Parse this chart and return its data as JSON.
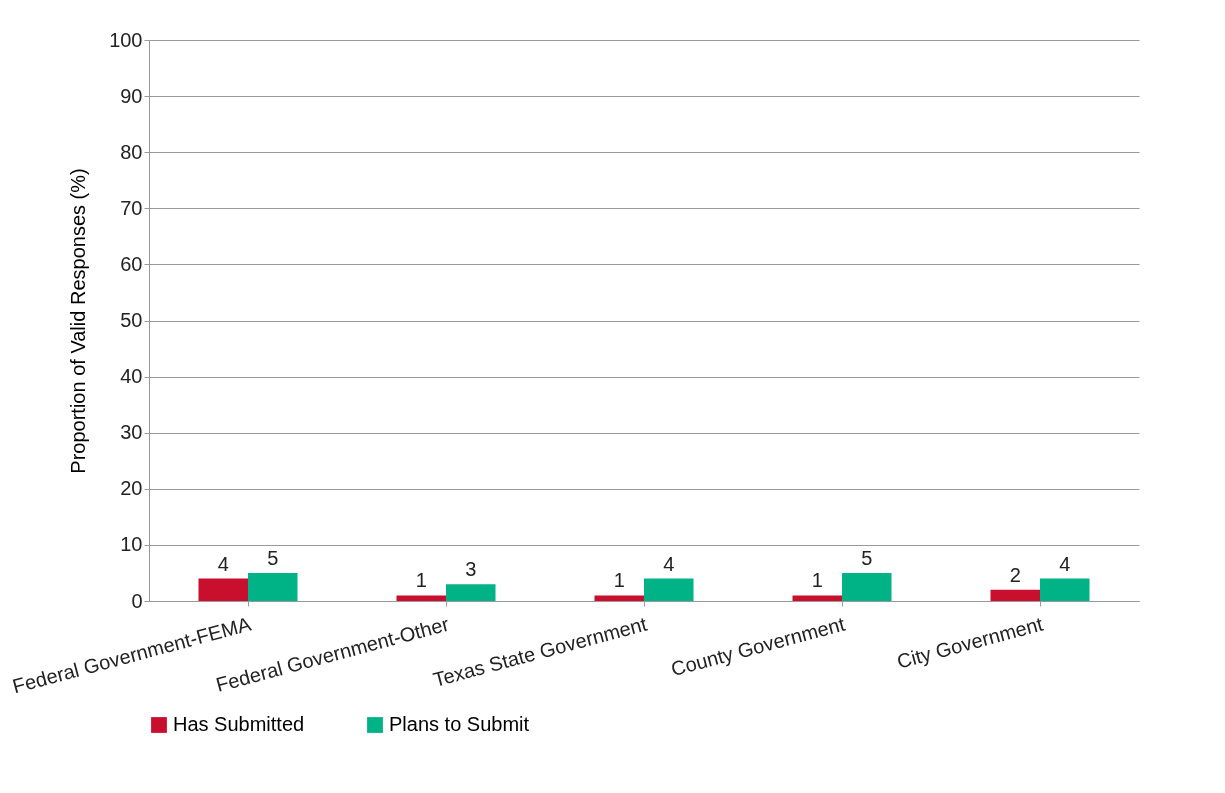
{
  "chart_data": {
    "type": "bar",
    "ylabel": "Proportion of Valid Responses (%)",
    "categories": [
      "Federal Government-FEMA",
      "Federal Government-Other",
      "Texas State Government",
      "County Government",
      "City Government"
    ],
    "series": [
      {
        "name": "Has Submitted",
        "color": "#c8102e",
        "values": [
          4,
          1,
          1,
          1,
          2
        ]
      },
      {
        "name": "Plans to Submit",
        "color": "#00b386",
        "values": [
          5,
          3,
          4,
          5,
          4
        ]
      }
    ],
    "ylim": [
      0,
      100
    ],
    "yticks": [
      0,
      10,
      20,
      30,
      40,
      50,
      60,
      70,
      80,
      90,
      100
    ],
    "grid": "y",
    "legend": "bottom",
    "data_labels": true
  }
}
